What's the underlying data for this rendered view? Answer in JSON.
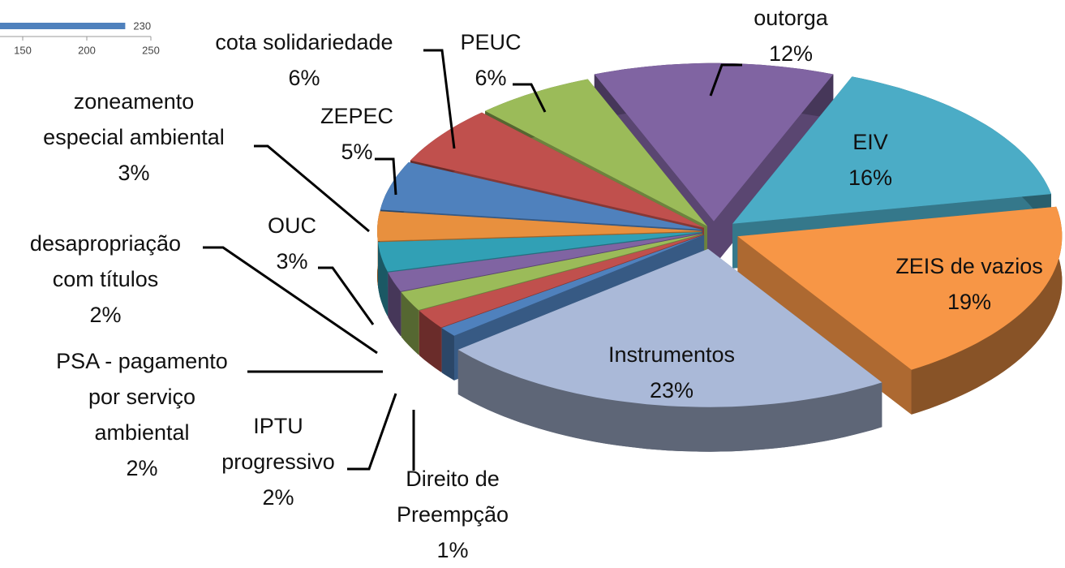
{
  "chart_data": [
    {
      "type": "bar",
      "orientation": "horizontal",
      "categories": [
        null
      ],
      "values": [
        230
      ],
      "color": "#4f81bd",
      "xlim": [
        0,
        250
      ],
      "xticks": [
        150,
        200,
        250
      ]
    },
    {
      "type": "pie",
      "three_d": true,
      "exploded": true,
      "categories": [
        "EIV",
        "ZEIS de vazios",
        "Instrumentos",
        "Direito de Preempção",
        "IPTU progressivo",
        "PSA - pagamento por serviço ambiental",
        "desapropriação com títulos",
        "OUC",
        "zoneamento especial ambiental",
        "ZEPEC",
        "cota solidariedade",
        "PEUC",
        "outorga"
      ],
      "values": [
        16,
        19,
        23,
        1,
        2,
        2,
        2,
        3,
        3,
        5,
        6,
        6,
        12
      ],
      "value_labels": [
        "16%",
        "19%",
        "23%",
        "1%",
        "2%",
        "2%",
        "2%",
        "3%",
        "3%",
        "5%",
        "6%",
        "6%",
        "12%"
      ],
      "colors": [
        "#4bacc6",
        "#f79646",
        "#aab9d8",
        "#4f81bd",
        "#c0504d",
        "#9bbb59",
        "#8064a2",
        "#31a0b5",
        "#e8903e",
        "#4f81bd",
        "#c0504d",
        "#9bbb59",
        "#8064a2"
      ]
    }
  ]
}
